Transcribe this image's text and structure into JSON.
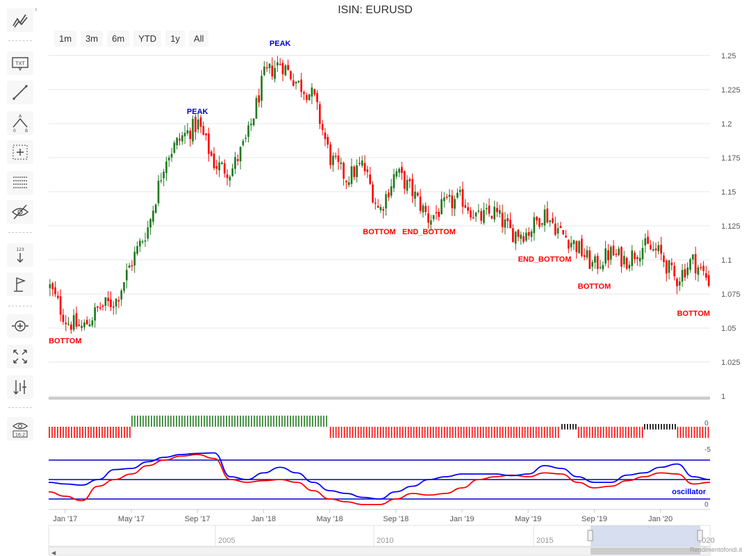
{
  "title": "ISIN: EURUSD",
  "range_selector": [
    "1m",
    "3m",
    "6m",
    "YTD",
    "1y",
    "All"
  ],
  "credit": "Rendimentofondi.it",
  "toolbar_icons": [
    "trend-lines-icon",
    "text-annotation-icon",
    "line-tool-icon",
    "measure-icon",
    "zoom-box-icon",
    "fibonacci-icon",
    "hide-drawings-icon",
    "vertical-counter-icon",
    "flag-icon",
    "zoom-in-icon",
    "fullscreen-icon",
    "current-price-icon",
    "indicators-icon"
  ],
  "toolbar_text": {
    "text_icon": "TXT",
    "counter_icon": "123",
    "indicators_icon": "16.2",
    "measure_labels": [
      "A",
      "0",
      "B"
    ]
  },
  "chart_data": {
    "type": "candlestick",
    "y_axis": {
      "ticks": [
        1,
        1.025,
        1.05,
        1.075,
        1.1,
        1.125,
        1.15,
        1.175,
        1.2,
        1.225,
        1.25
      ],
      "range": [
        1.0,
        1.255
      ]
    },
    "x_axis": {
      "ticks": [
        "Jan '17",
        "May '17",
        "Sep '17",
        "Jan '18",
        "May '18",
        "Sep '18",
        "Jan '19",
        "May '19",
        "Sep '19",
        "Jan '20"
      ]
    },
    "colors": {
      "up": "#1f7a1f",
      "down": "#ff0000",
      "peak_label": "#0000cc",
      "bottom_label": "#ff0000",
      "oscillator_main": "#0000ff",
      "oscillator_signal": "#ff0000",
      "band_lines": "#0000cc"
    },
    "price_path": [
      [
        "2016-12",
        1.08
      ],
      [
        "2017-01",
        1.055
      ],
      [
        "2017-02",
        1.05
      ],
      [
        "2017-03",
        1.065
      ],
      [
        "2017-04",
        1.07
      ],
      [
        "2017-05",
        1.1
      ],
      [
        "2017-06",
        1.125
      ],
      [
        "2017-07",
        1.175
      ],
      [
        "2017-08",
        1.19
      ],
      [
        "2017-09",
        1.2
      ],
      [
        "2017-10",
        1.17
      ],
      [
        "2017-11",
        1.165
      ],
      [
        "2017-12",
        1.19
      ],
      [
        "2018-01",
        1.235
      ],
      [
        "2018-02",
        1.245
      ],
      [
        "2018-03",
        1.23
      ],
      [
        "2018-04",
        1.22
      ],
      [
        "2018-05",
        1.175
      ],
      [
        "2018-06",
        1.16
      ],
      [
        "2018-07",
        1.17
      ],
      [
        "2018-08",
        1.135
      ],
      [
        "2018-09",
        1.165
      ],
      [
        "2018-10",
        1.15
      ],
      [
        "2018-11",
        1.13
      ],
      [
        "2018-12",
        1.14
      ],
      [
        "2019-01",
        1.145
      ],
      [
        "2019-02",
        1.13
      ],
      [
        "2019-03",
        1.135
      ],
      [
        "2019-04",
        1.12
      ],
      [
        "2019-05",
        1.12
      ],
      [
        "2019-06",
        1.135
      ],
      [
        "2019-07",
        1.12
      ],
      [
        "2019-08",
        1.11
      ],
      [
        "2019-09",
        1.095
      ],
      [
        "2019-10",
        1.105
      ],
      [
        "2019-11",
        1.1
      ],
      [
        "2019-12",
        1.11
      ],
      [
        "2020-01",
        1.105
      ],
      [
        "2020-02",
        1.085
      ],
      [
        "2020-03",
        1.1
      ],
      [
        "2020-04",
        1.085
      ]
    ],
    "annotations": [
      {
        "label": "BOTTOM",
        "date": "2017-01",
        "price": 1.05,
        "type": "bottom"
      },
      {
        "label": "PEAK",
        "date": "2017-09",
        "price": 1.2,
        "type": "peak"
      },
      {
        "label": "PEAK",
        "date": "2018-02",
        "price": 1.25,
        "type": "peak"
      },
      {
        "label": "BOTTOM",
        "date": "2018-08",
        "price": 1.13,
        "type": "bottom"
      },
      {
        "label": "END_BOTTOM",
        "date": "2018-11",
        "price": 1.13,
        "type": "bottom"
      },
      {
        "label": "END_BOTTOM",
        "date": "2019-06",
        "price": 1.11,
        "type": "bottom"
      },
      {
        "label": "BOTTOM",
        "date": "2019-09",
        "price": 1.09,
        "type": "bottom"
      },
      {
        "label": "BOTTOM",
        "date": "2020-03",
        "price": 1.07,
        "type": "bottom"
      }
    ],
    "signal_bars": {
      "axis_label_top": "0",
      "segments": [
        {
          "from": "2016-12",
          "to": "2017-05",
          "state": "down"
        },
        {
          "from": "2017-05",
          "to": "2018-05",
          "state": "up"
        },
        {
          "from": "2018-05",
          "to": "2019-07",
          "state": "down"
        },
        {
          "from": "2019-07",
          "to": "2019-08",
          "state": "neutral"
        },
        {
          "from": "2019-08",
          "to": "2019-12",
          "state": "down"
        },
        {
          "from": "2019-12",
          "to": "2020-02",
          "state": "neutral"
        },
        {
          "from": "2020-02",
          "to": "2020-04",
          "state": "down"
        }
      ]
    },
    "oscillator": {
      "label": "oscillator",
      "axis_labels": [
        "-5",
        "0"
      ],
      "bands": [
        0.85,
        0.5,
        0.15
      ],
      "main": [
        0.45,
        0.42,
        0.4,
        0.5,
        0.68,
        0.7,
        0.82,
        0.9,
        0.95,
        0.97,
        0.98,
        0.55,
        0.5,
        0.62,
        0.72,
        0.62,
        0.45,
        0.3,
        0.25,
        0.18,
        0.15,
        0.28,
        0.38,
        0.5,
        0.55,
        0.6,
        0.6,
        0.6,
        0.57,
        0.6,
        0.75,
        0.7,
        0.55,
        0.45,
        0.45,
        0.58,
        0.62,
        0.72,
        0.78,
        0.55,
        0.5
      ],
      "signal": [
        0.28,
        0.2,
        0.12,
        0.38,
        0.5,
        0.6,
        0.75,
        0.85,
        0.92,
        0.95,
        0.88,
        0.5,
        0.45,
        0.48,
        0.5,
        0.45,
        0.3,
        0.15,
        0.1,
        0.05,
        0.05,
        0.15,
        0.25,
        0.22,
        0.25,
        0.35,
        0.5,
        0.55,
        0.58,
        0.55,
        0.62,
        0.6,
        0.45,
        0.35,
        0.38,
        0.48,
        0.55,
        0.62,
        0.6,
        0.42,
        0.45
      ]
    },
    "navigator": {
      "ticks": [
        "2005",
        "2010",
        "2015",
        "2020"
      ],
      "selected_range": [
        "2016-12",
        "2020-04"
      ]
    }
  }
}
